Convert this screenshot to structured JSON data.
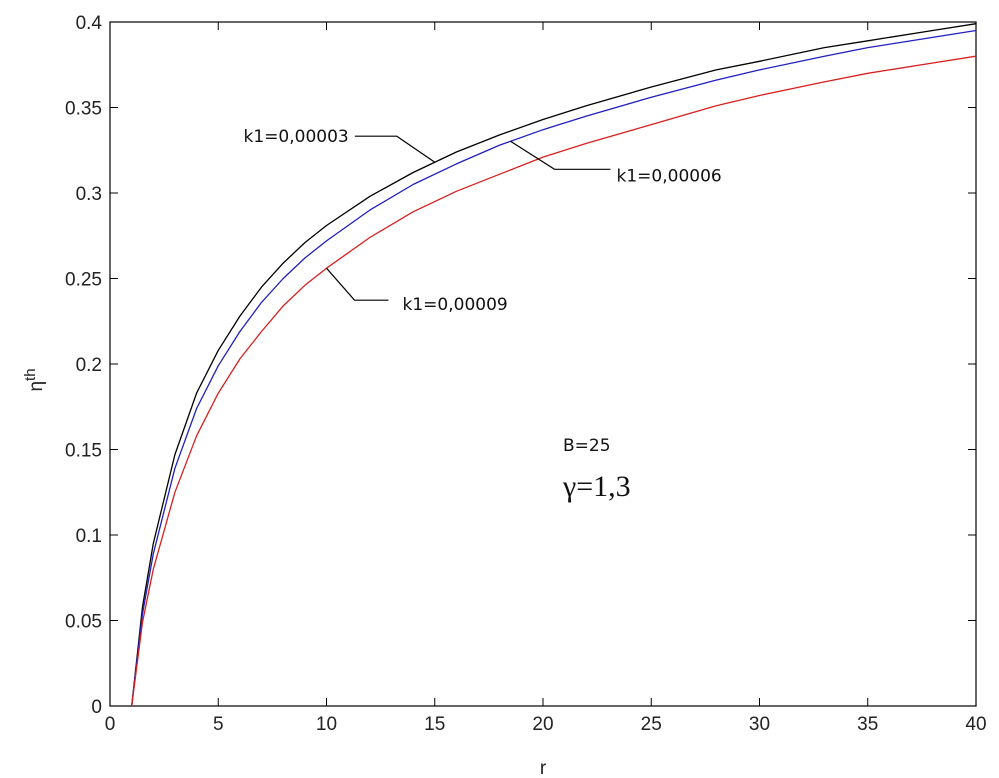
{
  "chart_data": {
    "type": "line",
    "title": "",
    "xlabel": "r",
    "ylabel": "η",
    "ylabel_sup": "th",
    "xlim": [
      0,
      40
    ],
    "ylim": [
      0,
      0.4
    ],
    "xticks": [
      0,
      5,
      10,
      15,
      20,
      25,
      30,
      35,
      40
    ],
    "yticks": [
      0,
      0.05,
      0.1,
      0.15,
      0.2,
      0.25,
      0.3,
      0.35,
      0.4
    ],
    "xtick_labels": [
      "0",
      "5",
      "10",
      "15",
      "20",
      "25",
      "30",
      "35",
      "40"
    ],
    "ytick_labels": [
      "0",
      "0.05",
      "0.1",
      "0.15",
      "0.2",
      "0.25",
      "0.3",
      "0.35",
      "0.4"
    ],
    "grid": false,
    "x": [
      1,
      1.5,
      2,
      3,
      4,
      5,
      6,
      7,
      8,
      9,
      10,
      12,
      14,
      16,
      18,
      20,
      22,
      25,
      28,
      30,
      33,
      35,
      38,
      40
    ],
    "series": [
      {
        "name": "k1=0,00003",
        "color": "#000000",
        "values": [
          0,
          0.058,
          0.095,
          0.147,
          0.183,
          0.208,
          0.228,
          0.245,
          0.259,
          0.271,
          0.281,
          0.298,
          0.312,
          0.324,
          0.334,
          0.343,
          0.351,
          0.362,
          0.372,
          0.377,
          0.385,
          0.389,
          0.395,
          0.399
        ]
      },
      {
        "name": "k1=0,00006",
        "color": "#1f1fbf",
        "values": [
          0,
          0.054,
          0.089,
          0.139,
          0.174,
          0.199,
          0.219,
          0.236,
          0.25,
          0.262,
          0.272,
          0.29,
          0.305,
          0.317,
          0.328,
          0.337,
          0.345,
          0.356,
          0.366,
          0.372,
          0.38,
          0.385,
          0.391,
          0.395
        ]
      },
      {
        "name": "k1=0,00009",
        "color": "#d81f1f",
        "values": [
          0,
          0.049,
          0.08,
          0.125,
          0.158,
          0.183,
          0.203,
          0.219,
          0.234,
          0.246,
          0.256,
          0.274,
          0.289,
          0.301,
          0.311,
          0.321,
          0.329,
          0.34,
          0.351,
          0.357,
          0.365,
          0.37,
          0.376,
          0.38
        ]
      }
    ],
    "annotations": [
      {
        "text": "k1=0,00003",
        "series": 0,
        "at_x": 15
      },
      {
        "text": "k1=0,00006",
        "series": 1,
        "at_x": 18.5
      },
      {
        "text": "k1=0,00009",
        "series": 2,
        "at_x": 10
      }
    ],
    "parameters": {
      "B": "B=25",
      "gamma": "γ=1,3"
    }
  }
}
